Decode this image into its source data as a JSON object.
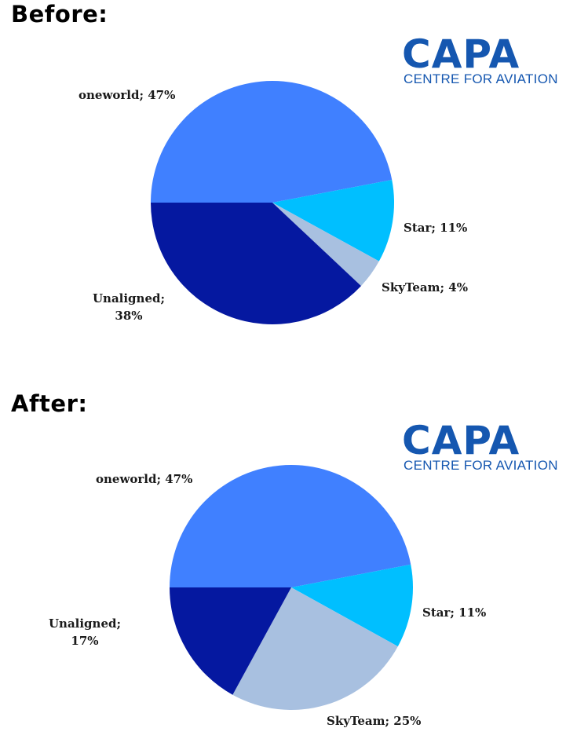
{
  "colors": {
    "oneworld": "#4080FF",
    "star": "#00BFFF",
    "skyteam": "#A8C0E0",
    "unaligned": "#0518A0",
    "logo_text": "#1557B0"
  },
  "logo": {
    "main": "CAPA",
    "sub": "CENTRE FOR AVIATION"
  },
  "chart_data": [
    {
      "type": "pie",
      "title": "Before:",
      "start_angle_deg": 180,
      "direction": "clockwise",
      "slices": [
        {
          "name": "oneworld",
          "value": 47,
          "label": "oneworld; 47%"
        },
        {
          "name": "Star",
          "value": 11,
          "label": "Star; 11%"
        },
        {
          "name": "SkyTeam",
          "value": 4,
          "label": "SkyTeam; 4%"
        },
        {
          "name": "Unaligned",
          "value": 38,
          "label_lines": [
            "Unaligned;",
            "38%"
          ]
        }
      ]
    },
    {
      "type": "pie",
      "title": "After:",
      "start_angle_deg": 180,
      "direction": "clockwise",
      "slices": [
        {
          "name": "oneworld",
          "value": 47,
          "label": "oneworld; 47%"
        },
        {
          "name": "Star",
          "value": 11,
          "label": "Star; 11%"
        },
        {
          "name": "SkyTeam",
          "value": 25,
          "label": "SkyTeam; 25%"
        },
        {
          "name": "Unaligned",
          "value": 17,
          "label_lines": [
            "Unaligned;",
            "17%"
          ]
        }
      ]
    }
  ]
}
